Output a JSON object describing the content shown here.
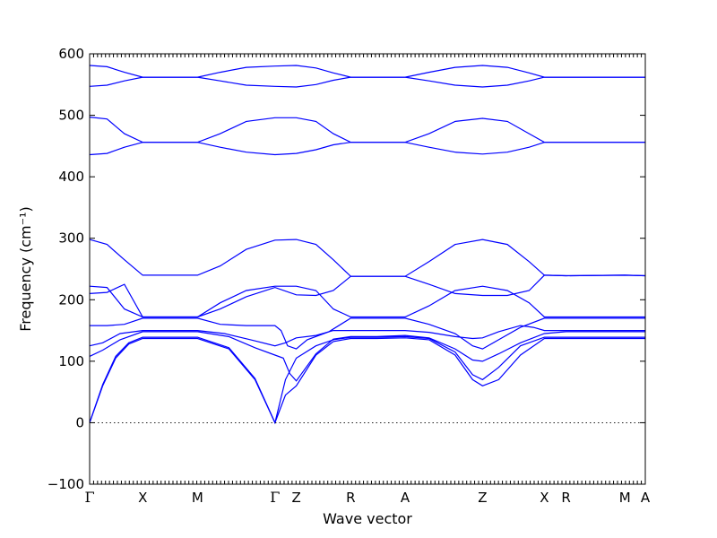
{
  "chart_data": {
    "type": "line",
    "title": "",
    "xlabel": "Wave vector",
    "ylabel": "Frequency (cm⁻¹)",
    "ylim": [
      -100,
      600
    ],
    "yticks": [
      "−100",
      "0",
      "100",
      "200",
      "300",
      "400",
      "500",
      "600"
    ],
    "ytick_values": [
      -100,
      0,
      100,
      200,
      300,
      400,
      500,
      600
    ],
    "xlim": [
      0,
      12.77
    ],
    "high_symmetry_points": [
      {
        "label": "Γ",
        "x": 0
      },
      {
        "label": "X",
        "x": 1.22
      },
      {
        "label": "M",
        "x": 2.48
      },
      {
        "label": "Γ",
        "x": 4.26
      },
      {
        "label": "Z",
        "x": 4.75
      },
      {
        "label": "R",
        "x": 6.0
      },
      {
        "label": "A",
        "x": 7.25
      },
      {
        "label": "Z",
        "x": 9.03
      },
      {
        "label": "X",
        "x": 10.45
      },
      {
        "label": "R",
        "x": 10.95
      },
      {
        "label": "M",
        "x": 12.3
      },
      {
        "label": "A",
        "x": 12.77
      }
    ],
    "grid": false,
    "zero_line": true,
    "band_color": "#0000ff",
    "bands": [
      {
        "points": [
          [
            0,
            0
          ],
          [
            0.3,
            60
          ],
          [
            0.6,
            105
          ],
          [
            0.9,
            128
          ],
          [
            1.22,
            137
          ],
          [
            1.8,
            137
          ],
          [
            2.48,
            137
          ],
          [
            3.2,
            120
          ],
          [
            3.8,
            70
          ],
          [
            4.26,
            0
          ],
          [
            4.5,
            45
          ],
          [
            4.75,
            60
          ],
          [
            5.2,
            110
          ],
          [
            5.6,
            132
          ],
          [
            6.0,
            137
          ],
          [
            6.6,
            137
          ],
          [
            7.25,
            138
          ],
          [
            7.8,
            135
          ],
          [
            8.4,
            110
          ],
          [
            8.8,
            70
          ],
          [
            9.03,
            60
          ],
          [
            9.4,
            70
          ],
          [
            9.9,
            110
          ],
          [
            10.45,
            137
          ],
          [
            10.95,
            137
          ],
          [
            12.3,
            137
          ],
          [
            12.77,
            137
          ]
        ]
      },
      {
        "points": [
          [
            0,
            0
          ],
          [
            0.3,
            62
          ],
          [
            0.6,
            108
          ],
          [
            0.9,
            130
          ],
          [
            1.22,
            139
          ],
          [
            1.8,
            139
          ],
          [
            2.48,
            139
          ],
          [
            3.2,
            122
          ],
          [
            3.8,
            72
          ],
          [
            4.26,
            0
          ],
          [
            4.5,
            70
          ],
          [
            4.75,
            105
          ],
          [
            5.2,
            125
          ],
          [
            5.6,
            135
          ],
          [
            6.0,
            139
          ],
          [
            6.6,
            139
          ],
          [
            7.25,
            140
          ],
          [
            7.8,
            137
          ],
          [
            8.4,
            115
          ],
          [
            8.8,
            78
          ],
          [
            9.03,
            70
          ],
          [
            9.4,
            90
          ],
          [
            9.9,
            125
          ],
          [
            10.45,
            139
          ],
          [
            10.95,
            139
          ],
          [
            12.3,
            139
          ],
          [
            12.77,
            139
          ]
        ]
      },
      {
        "points": [
          [
            0,
            108
          ],
          [
            0.3,
            118
          ],
          [
            0.7,
            135
          ],
          [
            1.22,
            148
          ],
          [
            1.8,
            148
          ],
          [
            2.48,
            148
          ],
          [
            3.2,
            140
          ],
          [
            3.8,
            122
          ],
          [
            4.26,
            110
          ],
          [
            4.45,
            105
          ],
          [
            4.6,
            80
          ],
          [
            4.75,
            68
          ],
          [
            5.2,
            112
          ],
          [
            5.6,
            136
          ],
          [
            6.0,
            140
          ],
          [
            6.6,
            140
          ],
          [
            7.25,
            142
          ],
          [
            7.8,
            138
          ],
          [
            8.4,
            120
          ],
          [
            8.8,
            102
          ],
          [
            9.03,
            100
          ],
          [
            9.4,
            112
          ],
          [
            9.9,
            130
          ],
          [
            10.45,
            145
          ],
          [
            10.95,
            148
          ],
          [
            12.3,
            148
          ],
          [
            12.77,
            148
          ]
        ]
      },
      {
        "points": [
          [
            0,
            125
          ],
          [
            0.3,
            130
          ],
          [
            0.7,
            145
          ],
          [
            1.22,
            150
          ],
          [
            1.8,
            150
          ],
          [
            2.48,
            150
          ],
          [
            3.1,
            145
          ],
          [
            3.7,
            135
          ],
          [
            4.26,
            125
          ],
          [
            4.5,
            130
          ],
          [
            4.75,
            138
          ],
          [
            5.2,
            142
          ],
          [
            5.6,
            150
          ],
          [
            6.0,
            150
          ],
          [
            6.6,
            150
          ],
          [
            7.25,
            150
          ],
          [
            7.8,
            147
          ],
          [
            8.4,
            140
          ],
          [
            8.8,
            137
          ],
          [
            9.03,
            138
          ],
          [
            9.4,
            148
          ],
          [
            9.9,
            158
          ],
          [
            10.2,
            155
          ],
          [
            10.45,
            150
          ],
          [
            10.95,
            150
          ],
          [
            12.3,
            150
          ],
          [
            12.77,
            150
          ]
        ]
      },
      {
        "points": [
          [
            0,
            158
          ],
          [
            0.4,
            158
          ],
          [
            0.8,
            160
          ],
          [
            1.22,
            170
          ],
          [
            1.8,
            170
          ],
          [
            2.48,
            170
          ],
          [
            3.0,
            160
          ],
          [
            3.6,
            158
          ],
          [
            4.0,
            158
          ],
          [
            4.26,
            158
          ],
          [
            4.4,
            150
          ],
          [
            4.55,
            125
          ],
          [
            4.75,
            120
          ],
          [
            5.0,
            135
          ],
          [
            5.5,
            148
          ],
          [
            6.0,
            170
          ],
          [
            6.6,
            170
          ],
          [
            7.25,
            170
          ],
          [
            7.8,
            160
          ],
          [
            8.4,
            145
          ],
          [
            8.8,
            125
          ],
          [
            9.03,
            120
          ],
          [
            9.4,
            135
          ],
          [
            9.9,
            155
          ],
          [
            10.45,
            170
          ],
          [
            10.95,
            170
          ],
          [
            12.3,
            170
          ],
          [
            12.77,
            170
          ]
        ]
      },
      {
        "points": [
          [
            0,
            210
          ],
          [
            0.4,
            212
          ],
          [
            0.8,
            225
          ],
          [
            1.22,
            172
          ],
          [
            1.8,
            172
          ],
          [
            2.48,
            172
          ],
          [
            3.0,
            195
          ],
          [
            3.6,
            215
          ],
          [
            4.26,
            222
          ],
          [
            4.75,
            222
          ],
          [
            5.2,
            215
          ],
          [
            5.6,
            185
          ],
          [
            6.0,
            172
          ],
          [
            6.6,
            172
          ],
          [
            7.25,
            172
          ],
          [
            7.8,
            190
          ],
          [
            8.4,
            215
          ],
          [
            9.03,
            222
          ],
          [
            9.6,
            215
          ],
          [
            10.1,
            195
          ],
          [
            10.45,
            172
          ],
          [
            10.95,
            172
          ],
          [
            12.3,
            172
          ],
          [
            12.77,
            172
          ]
        ]
      },
      {
        "points": [
          [
            0,
            222
          ],
          [
            0.4,
            220
          ],
          [
            0.8,
            185
          ],
          [
            1.22,
            172
          ],
          [
            1.8,
            172
          ],
          [
            2.48,
            172
          ],
          [
            3.0,
            185
          ],
          [
            3.6,
            205
          ],
          [
            4.26,
            220
          ],
          [
            4.75,
            208
          ],
          [
            5.2,
            207
          ],
          [
            5.6,
            215
          ],
          [
            6.0,
            238
          ],
          [
            6.6,
            238
          ],
          [
            7.25,
            238
          ],
          [
            7.8,
            225
          ],
          [
            8.4,
            210
          ],
          [
            9.03,
            207
          ],
          [
            9.6,
            207
          ],
          [
            10.1,
            215
          ],
          [
            10.45,
            240
          ],
          [
            10.95,
            239
          ],
          [
            12.3,
            240
          ],
          [
            12.77,
            239
          ]
        ]
      },
      {
        "points": [
          [
            0,
            298
          ],
          [
            0.4,
            290
          ],
          [
            0.8,
            265
          ],
          [
            1.22,
            240
          ],
          [
            1.8,
            240
          ],
          [
            2.48,
            240
          ],
          [
            3.0,
            255
          ],
          [
            3.6,
            282
          ],
          [
            4.26,
            297
          ],
          [
            4.75,
            298
          ],
          [
            5.2,
            290
          ],
          [
            5.6,
            265
          ],
          [
            6.0,
            238
          ],
          [
            6.6,
            238
          ],
          [
            7.25,
            238
          ],
          [
            7.8,
            262
          ],
          [
            8.4,
            290
          ],
          [
            9.03,
            298
          ],
          [
            9.6,
            290
          ],
          [
            10.1,
            262
          ],
          [
            10.45,
            240
          ],
          [
            10.95,
            239
          ],
          [
            12.3,
            240
          ],
          [
            12.77,
            239
          ]
        ]
      },
      {
        "points": [
          [
            0,
            436
          ],
          [
            0.4,
            438
          ],
          [
            0.8,
            448
          ],
          [
            1.22,
            456
          ],
          [
            1.8,
            456
          ],
          [
            2.48,
            456
          ],
          [
            3.0,
            448
          ],
          [
            3.6,
            440
          ],
          [
            4.26,
            436
          ],
          [
            4.75,
            438
          ],
          [
            5.2,
            444
          ],
          [
            5.6,
            452
          ],
          [
            6.0,
            456
          ],
          [
            6.6,
            456
          ],
          [
            7.25,
            456
          ],
          [
            7.8,
            448
          ],
          [
            8.4,
            440
          ],
          [
            9.03,
            437
          ],
          [
            9.6,
            440
          ],
          [
            10.1,
            448
          ],
          [
            10.45,
            456
          ],
          [
            10.95,
            456
          ],
          [
            12.3,
            456
          ],
          [
            12.77,
            456
          ]
        ]
      },
      {
        "points": [
          [
            0,
            497
          ],
          [
            0.4,
            494
          ],
          [
            0.8,
            470
          ],
          [
            1.22,
            456
          ],
          [
            1.8,
            456
          ],
          [
            2.48,
            456
          ],
          [
            3.0,
            470
          ],
          [
            3.6,
            490
          ],
          [
            4.26,
            496
          ],
          [
            4.75,
            496
          ],
          [
            5.2,
            490
          ],
          [
            5.6,
            470
          ],
          [
            6.0,
            456
          ],
          [
            6.6,
            456
          ],
          [
            7.25,
            456
          ],
          [
            7.8,
            470
          ],
          [
            8.4,
            490
          ],
          [
            9.03,
            495
          ],
          [
            9.6,
            490
          ],
          [
            10.1,
            470
          ],
          [
            10.45,
            456
          ],
          [
            10.95,
            456
          ],
          [
            12.3,
            456
          ],
          [
            12.77,
            456
          ]
        ]
      },
      {
        "points": [
          [
            0,
            547
          ],
          [
            0.4,
            549
          ],
          [
            0.8,
            556
          ],
          [
            1.22,
            562
          ],
          [
            1.8,
            562
          ],
          [
            2.48,
            562
          ],
          [
            3.0,
            556
          ],
          [
            3.6,
            549
          ],
          [
            4.26,
            547
          ],
          [
            4.75,
            546
          ],
          [
            5.2,
            550
          ],
          [
            5.6,
            557
          ],
          [
            6.0,
            562
          ],
          [
            6.6,
            562
          ],
          [
            7.25,
            562
          ],
          [
            7.8,
            556
          ],
          [
            8.4,
            549
          ],
          [
            9.03,
            546
          ],
          [
            9.6,
            549
          ],
          [
            10.1,
            556
          ],
          [
            10.45,
            562
          ],
          [
            10.95,
            562
          ],
          [
            12.3,
            562
          ],
          [
            12.77,
            562
          ]
        ]
      },
      {
        "points": [
          [
            0,
            581
          ],
          [
            0.4,
            579
          ],
          [
            0.8,
            570
          ],
          [
            1.22,
            562
          ],
          [
            1.8,
            562
          ],
          [
            2.48,
            562
          ],
          [
            3.0,
            570
          ],
          [
            3.6,
            578
          ],
          [
            4.26,
            580
          ],
          [
            4.75,
            581
          ],
          [
            5.2,
            577
          ],
          [
            5.6,
            569
          ],
          [
            6.0,
            562
          ],
          [
            6.6,
            562
          ],
          [
            7.25,
            562
          ],
          [
            7.8,
            570
          ],
          [
            8.4,
            578
          ],
          [
            9.03,
            581
          ],
          [
            9.6,
            578
          ],
          [
            10.1,
            569
          ],
          [
            10.45,
            562
          ],
          [
            10.95,
            562
          ],
          [
            12.3,
            562
          ],
          [
            12.77,
            562
          ]
        ]
      }
    ]
  }
}
